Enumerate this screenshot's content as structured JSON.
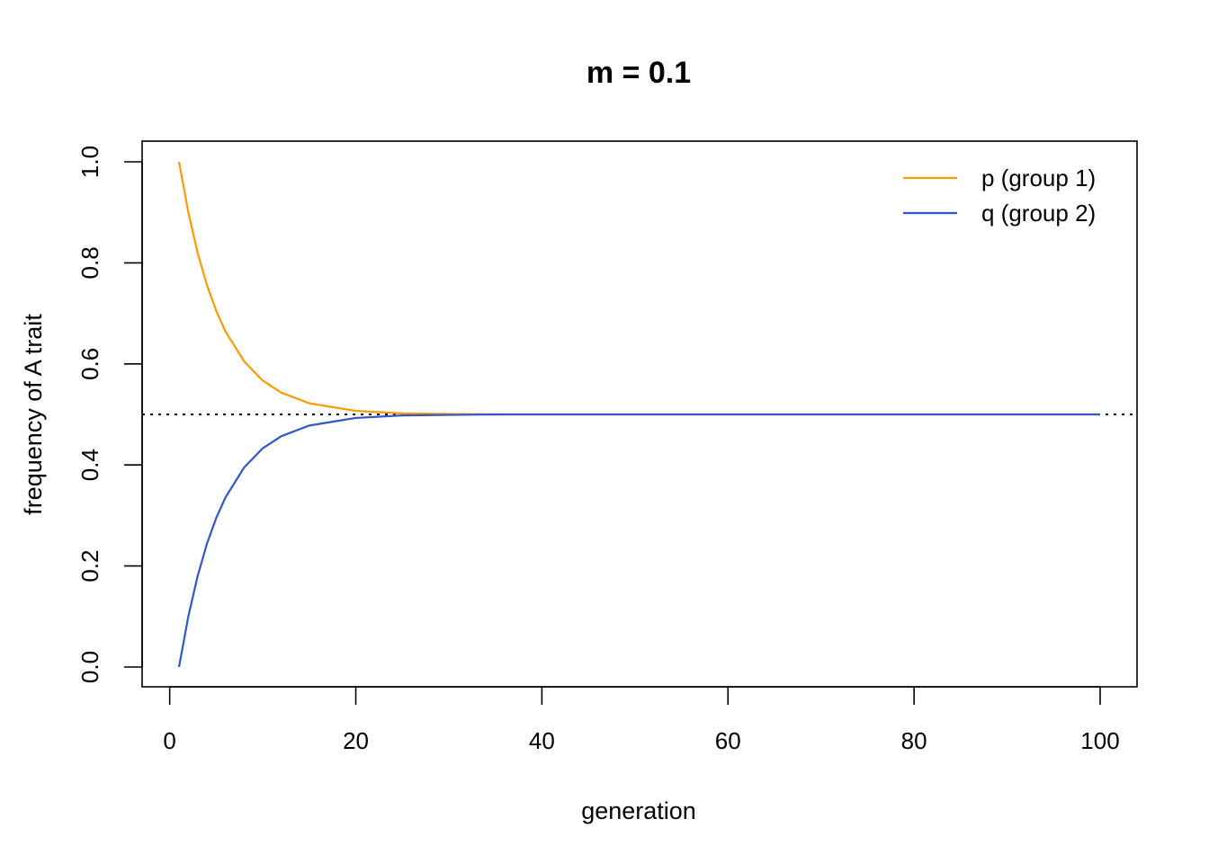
{
  "chart_data": {
    "type": "line",
    "title": "m = 0.1",
    "xlabel": "generation",
    "ylabel": "frequency of A trait",
    "xlim": [
      1,
      100
    ],
    "ylim": [
      0,
      1
    ],
    "x_ticks": [
      0,
      20,
      40,
      60,
      80,
      100
    ],
    "x_tick_labels": [
      "0",
      "20",
      "40",
      "60",
      "80",
      "100"
    ],
    "y_ticks": [
      0,
      0.2,
      0.4,
      0.6,
      0.8,
      1.0
    ],
    "y_tick_labels": [
      "0.0",
      "0.2",
      "0.4",
      "0.6",
      "0.8",
      "1.0"
    ],
    "grid": false,
    "legend_position": "top-right",
    "reference_line": {
      "y": 0.5,
      "style": "dotted",
      "color": "#000000"
    },
    "series": [
      {
        "name": "p (group 1)",
        "color": "#ff9900",
        "x": [
          1,
          2,
          3,
          4,
          5,
          6,
          8,
          10,
          12,
          15,
          20,
          25,
          30,
          35,
          40,
          50,
          60,
          70,
          80,
          90,
          100
        ],
        "y": [
          1.0,
          0.9,
          0.82,
          0.756,
          0.705,
          0.664,
          0.605,
          0.567,
          0.543,
          0.522,
          0.507,
          0.502,
          0.501,
          0.5,
          0.5,
          0.5,
          0.5,
          0.5,
          0.5,
          0.5,
          0.5
        ]
      },
      {
        "name": "q (group 2)",
        "color": "#3355cc",
        "x": [
          1,
          2,
          3,
          4,
          5,
          6,
          8,
          10,
          12,
          15,
          20,
          25,
          30,
          35,
          40,
          50,
          60,
          70,
          80,
          90,
          100
        ],
        "y": [
          0.0,
          0.1,
          0.18,
          0.244,
          0.295,
          0.336,
          0.395,
          0.433,
          0.457,
          0.478,
          0.493,
          0.498,
          0.499,
          0.5,
          0.5,
          0.5,
          0.5,
          0.5,
          0.5,
          0.5,
          0.5
        ]
      }
    ]
  }
}
